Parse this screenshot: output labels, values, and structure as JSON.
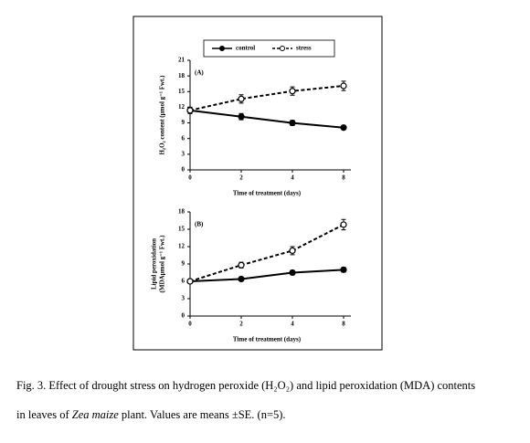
{
  "chart_data": [
    {
      "type": "line",
      "label": "(A)",
      "ylabel": [
        "H₂O₂ content (µmol g⁻¹ Fwt.)"
      ],
      "xlabel": "Time of treatment (days)",
      "categories": [
        "0",
        "2",
        "4",
        "8"
      ],
      "ylim": [
        0,
        21
      ],
      "yticks": [
        0,
        3,
        6,
        9,
        12,
        15,
        18,
        21
      ],
      "series": [
        {
          "name": "control",
          "color": "#000000",
          "line_style": "solid",
          "marker_fill": "#000000",
          "values": [
            11.4,
            10.2,
            9.0,
            8.1
          ],
          "errors": [
            0.6,
            0.6,
            0.5,
            0.4
          ]
        },
        {
          "name": "stress",
          "color": "#000000",
          "line_style": "dashed",
          "marker_fill": "#ffffff",
          "values": [
            11.4,
            13.6,
            15.1,
            16.1
          ],
          "errors": [
            0.6,
            0.8,
            0.8,
            0.9
          ]
        }
      ]
    },
    {
      "type": "line",
      "label": "(B)",
      "ylabel": [
        "Lipid peroxidation",
        "(MDAµmol g⁻¹ Fwt.)"
      ],
      "xlabel": "Time of treatment (days)",
      "categories": [
        "0",
        "2",
        "4",
        "8"
      ],
      "ylim": [
        0,
        18
      ],
      "yticks": [
        0,
        3,
        6,
        9,
        12,
        15,
        18
      ],
      "series": [
        {
          "name": "control",
          "color": "#000000",
          "line_style": "solid",
          "marker_fill": "#000000",
          "values": [
            6.0,
            6.4,
            7.5,
            8.0
          ],
          "errors": [
            0.3,
            0.3,
            0.4,
            0.4
          ]
        },
        {
          "name": "stress",
          "color": "#000000",
          "line_style": "dashed",
          "marker_fill": "#ffffff",
          "values": [
            6.0,
            8.8,
            11.3,
            15.8
          ],
          "errors": [
            0.3,
            0.5,
            0.7,
            0.9
          ]
        }
      ]
    }
  ],
  "caption": [
    "Fig. 3. Effect of drought stress on hydrogen peroxide (H₂O₂) and lipid peroxidation (MDA) contents",
    "in leaves of ",
    "Zea maize",
    " plant. Values are means ±SE. (n=5)."
  ]
}
